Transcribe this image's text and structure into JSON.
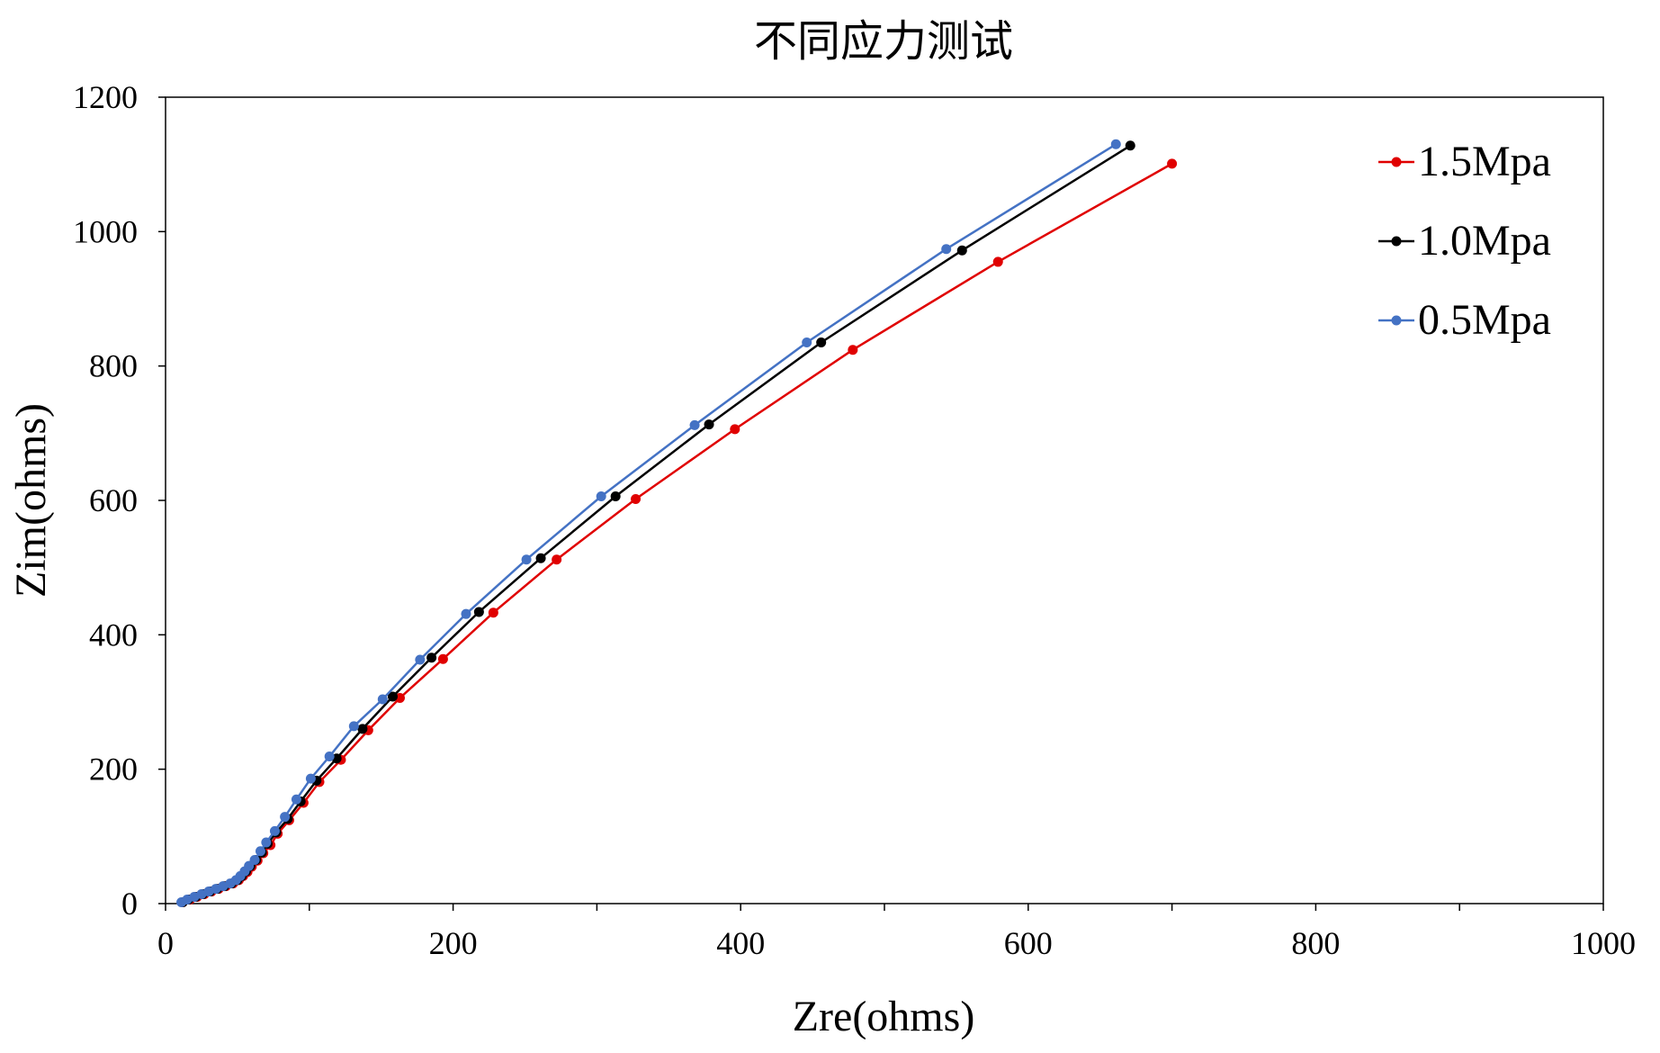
{
  "chart_data": {
    "type": "line",
    "title": "不同应力测试",
    "xlabel": "Zre(ohms)",
    "ylabel": "Zim(ohms)",
    "xlim": [
      0,
      1000
    ],
    "ylim": [
      0,
      1200
    ],
    "x_ticks": [
      0,
      200,
      400,
      600,
      800,
      1000
    ],
    "y_ticks": [
      0,
      200,
      400,
      600,
      800,
      1000,
      1200
    ],
    "x_tick_labels": [
      "0",
      "200",
      "400",
      "600",
      "800",
      "1000"
    ],
    "y_tick_labels": [
      "0",
      "200",
      "400",
      "600",
      "800",
      "1000",
      "1200"
    ],
    "grid": false,
    "legend_position": "top-right",
    "series": [
      {
        "name": "1.5Mpa",
        "color": "#e00000",
        "x": [
          12,
          17,
          22,
          27,
          32,
          37,
          42,
          47,
          51,
          54,
          57,
          60,
          64,
          68,
          73,
          78,
          86,
          96,
          107,
          122,
          141,
          163,
          193,
          228,
          272,
          327,
          396,
          478,
          579,
          700
        ],
        "y": [
          2,
          6,
          10,
          14,
          18,
          22,
          26,
          30,
          35,
          41,
          47,
          55,
          64,
          75,
          87,
          104,
          124,
          150,
          181,
          214,
          258,
          306,
          364,
          433,
          512,
          602,
          706,
          824,
          955,
          1101
        ]
      },
      {
        "name": "1.0Mpa",
        "color": "#000000",
        "x": [
          12,
          16,
          21,
          26,
          31,
          36,
          41,
          46,
          50,
          53,
          56,
          59,
          63,
          67,
          71,
          77,
          85,
          94,
          105,
          119,
          137,
          158,
          185,
          218,
          261,
          313,
          378,
          456,
          554,
          671
        ],
        "y": [
          2,
          6,
          10,
          14,
          18,
          22,
          26,
          30,
          35,
          41,
          48,
          56,
          65,
          76,
          89,
          106,
          126,
          152,
          183,
          216,
          260,
          308,
          366,
          434,
          514,
          606,
          713,
          835,
          972,
          1128
        ]
      },
      {
        "name": "0.5Mpa",
        "color": "#4472c4",
        "x": [
          11,
          15,
          20,
          25,
          30,
          35,
          40,
          45,
          49,
          52,
          55,
          58,
          62,
          66,
          70,
          76,
          83,
          91,
          101,
          114,
          131,
          151,
          177,
          209,
          251,
          303,
          368,
          446,
          543,
          661
        ],
        "y": [
          2,
          6,
          10,
          14,
          18,
          22,
          26,
          30,
          35,
          41,
          48,
          56,
          65,
          78,
          91,
          108,
          129,
          155,
          186,
          219,
          264,
          304,
          363,
          431,
          512,
          606,
          712,
          835,
          974,
          1130
        ]
      }
    ]
  }
}
